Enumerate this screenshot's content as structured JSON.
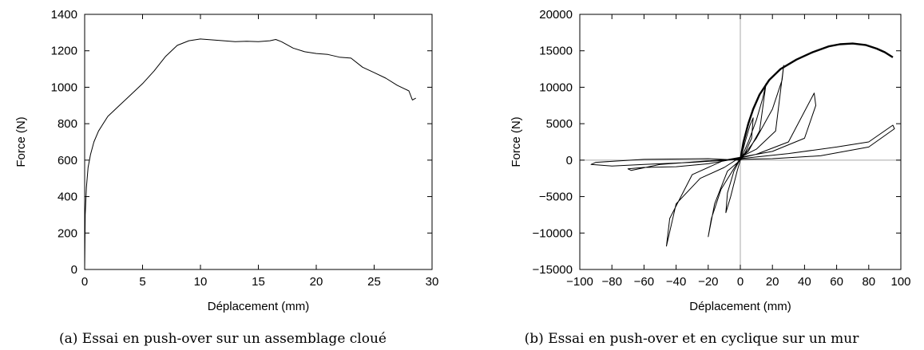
{
  "chart_data": [
    {
      "type": "line",
      "caption": "(a) Essai en push-over sur un assemblage cloué",
      "xlabel": "Déplacement (mm)",
      "ylabel": "Force (N)",
      "xlim": [
        0,
        30
      ],
      "ylim": [
        0,
        1400
      ],
      "xticks": [
        0,
        5,
        10,
        15,
        20,
        25,
        30
      ],
      "yticks": [
        0,
        200,
        400,
        600,
        800,
        1000,
        1200,
        1400
      ],
      "grid": false,
      "series": [
        {
          "x": [
            0,
            0.05,
            0.15,
            0.3,
            0.5,
            0.8,
            1.2,
            2,
            3,
            4,
            5,
            6,
            7,
            8,
            9,
            10,
            11,
            12,
            13,
            14,
            15,
            16,
            16.5,
            17,
            18,
            19,
            20,
            21,
            22,
            23,
            24,
            25,
            26,
            27,
            28,
            28.3,
            28.6
          ],
          "y": [
            0,
            300,
            450,
            560,
            630,
            700,
            760,
            840,
            900,
            960,
            1020,
            1090,
            1170,
            1230,
            1255,
            1265,
            1260,
            1255,
            1250,
            1252,
            1250,
            1255,
            1262,
            1250,
            1215,
            1195,
            1185,
            1180,
            1165,
            1160,
            1110,
            1080,
            1050,
            1010,
            980,
            930,
            940
          ]
        }
      ]
    },
    {
      "type": "line",
      "caption": "(b) Essai en push-over et en cyclique sur un mur",
      "xlabel": "Déplacement (mm)",
      "ylabel": "Force (N)",
      "xlim": [
        -100,
        100
      ],
      "ylim": [
        -15000,
        20000
      ],
      "xticks": [
        -100,
        -80,
        -60,
        -40,
        -20,
        0,
        20,
        40,
        60,
        80,
        100
      ],
      "yticks": [
        -15000,
        -10000,
        -5000,
        0,
        5000,
        10000,
        15000,
        20000
      ],
      "zero_lines": true,
      "grid": false,
      "series": [
        {
          "style": "push-over (bold)",
          "x": [
            0,
            2,
            5,
            8,
            12,
            18,
            25,
            35,
            45,
            55,
            62,
            70,
            78,
            85,
            90,
            95
          ],
          "y": [
            0,
            2500,
            5000,
            7000,
            9000,
            11000,
            12500,
            13800,
            14800,
            15600,
            15900,
            16000,
            15800,
            15300,
            14800,
            14100
          ]
        },
        {
          "style": "cyclic",
          "x": [
            0,
            3,
            6,
            8,
            7,
            3,
            0,
            -4,
            -8,
            -9,
            -6,
            -2,
            0,
            5,
            10,
            14,
            16,
            12,
            5,
            0,
            -5,
            -12,
            -18,
            -20,
            -16,
            -8,
            0,
            10,
            20,
            26,
            27,
            22,
            10,
            0,
            -10,
            -25,
            -40,
            -46,
            -44,
            -30,
            -10,
            0,
            20,
            40,
            47,
            46,
            30,
            10,
            0,
            -20,
            -40,
            -60,
            -70,
            -68,
            -50,
            -20,
            0,
            30,
            60,
            80,
            95,
            96,
            80,
            50,
            20,
            0,
            -30,
            -60,
            -80,
            -93,
            -90,
            -60,
            -20,
            0
          ],
          "y": [
            0,
            2500,
            4800,
            5800,
            3000,
            1000,
            200,
            -1500,
            -4500,
            -7200,
            -5000,
            -1500,
            0,
            2500,
            5500,
            8500,
            10500,
            4000,
            1200,
            300,
            -1500,
            -4000,
            -8000,
            -10500,
            -6000,
            -1500,
            0,
            3000,
            7000,
            11000,
            13000,
            4000,
            1500,
            400,
            -1000,
            -2500,
            -6000,
            -11800,
            -8000,
            -2000,
            0,
            400,
            1200,
            3000,
            7500,
            9200,
            2500,
            800,
            300,
            -500,
            -900,
            -1000,
            -1200,
            -1400,
            -600,
            -100,
            200,
            900,
            1800,
            2500,
            4800,
            4300,
            1800,
            600,
            200,
            100,
            -300,
            -600,
            -800,
            -600,
            -300,
            100,
            200,
            0
          ]
        }
      ]
    }
  ]
}
